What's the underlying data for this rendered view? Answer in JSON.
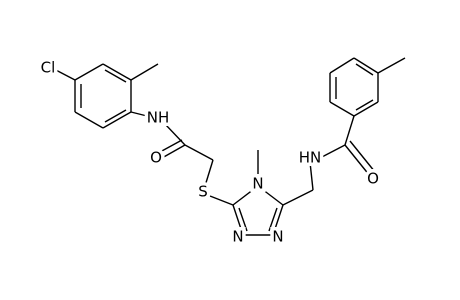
{
  "atoms": [
    "Cl",
    "NH",
    "O",
    "S",
    "N",
    "N",
    "N",
    "HN",
    "O"
  ]
}
